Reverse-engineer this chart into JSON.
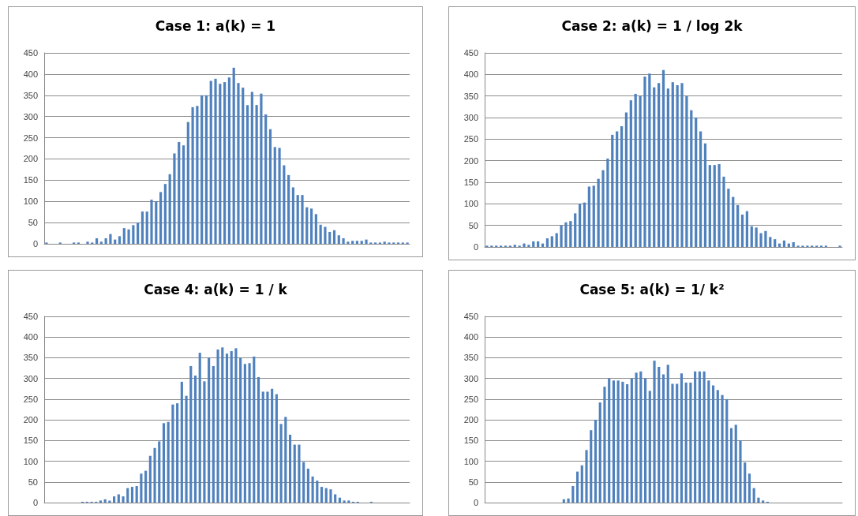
{
  "chart_data": [
    {
      "type": "bar",
      "title": "Case 1: a(k) = 1",
      "color": "#4f81bd",
      "ylim": [
        0,
        450
      ],
      "yticks": [
        0,
        50,
        100,
        150,
        200,
        250,
        300,
        350,
        400,
        450
      ],
      "grid": "y",
      "categories": [
        null,
        null,
        null,
        null,
        null,
        null,
        null,
        null,
        null,
        null,
        null,
        null,
        null,
        null,
        null,
        null,
        null,
        null,
        null,
        null,
        null,
        null,
        null,
        null,
        null,
        null,
        null,
        null,
        null,
        null,
        null,
        null,
        null,
        null,
        null,
        null,
        null,
        null,
        null,
        null,
        null,
        null,
        null,
        null,
        null,
        null,
        null,
        null,
        null,
        null,
        null,
        null,
        null,
        null,
        null,
        null,
        null,
        null,
        null,
        null,
        null,
        null,
        null,
        null,
        null,
        null,
        null,
        null,
        null,
        null,
        null,
        null,
        null,
        null,
        null,
        null,
        null,
        null,
        null,
        null
      ],
      "values": [
        3,
        0,
        0,
        3,
        0,
        0,
        3,
        3,
        0,
        5,
        3,
        13,
        5,
        13,
        23,
        10,
        18,
        37,
        34,
        44,
        50,
        76,
        76,
        104,
        100,
        122,
        141,
        164,
        213,
        240,
        232,
        287,
        322,
        325,
        350,
        350,
        384,
        389,
        377,
        381,
        392,
        415,
        379,
        368,
        327,
        358,
        327,
        354,
        305,
        270,
        228,
        226,
        185,
        162,
        133,
        115,
        115,
        86,
        83,
        70,
        45,
        40,
        28,
        32,
        20,
        13,
        5,
        7,
        7,
        7,
        10,
        3,
        3,
        3,
        5,
        3,
        3,
        3,
        3,
        3
      ]
    },
    {
      "type": "bar",
      "title": "Case 2: a(k) = 1 / log 2k",
      "color": "#4f81bd",
      "ylim": [
        0,
        450
      ],
      "yticks": [
        0,
        50,
        100,
        150,
        200,
        250,
        300,
        350,
        400,
        450
      ],
      "grid": "y",
      "categories": [
        null,
        null,
        null,
        null,
        null,
        null,
        null,
        null,
        null,
        null,
        null,
        null,
        null,
        null,
        null,
        null,
        null,
        null,
        null,
        null,
        null,
        null,
        null,
        null,
        null,
        null,
        null,
        null,
        null,
        null,
        null,
        null,
        null,
        null,
        null,
        null,
        null,
        null,
        null,
        null,
        null,
        null,
        null,
        null,
        null,
        null,
        null,
        null,
        null,
        null,
        null,
        null,
        null,
        null,
        null,
        null,
        null,
        null,
        null,
        null,
        null,
        null,
        null,
        null,
        null,
        null,
        null,
        null,
        null,
        null,
        null,
        null,
        null,
        null,
        null,
        null,
        null
      ],
      "values": [
        3,
        3,
        3,
        3,
        3,
        3,
        5,
        3,
        8,
        5,
        13,
        13,
        8,
        20,
        25,
        32,
        50,
        57,
        60,
        78,
        100,
        103,
        140,
        142,
        158,
        178,
        205,
        260,
        268,
        280,
        312,
        340,
        355,
        350,
        395,
        402,
        370,
        380,
        410,
        367,
        382,
        375,
        380,
        350,
        317,
        300,
        268,
        240,
        190,
        190,
        192,
        163,
        135,
        116,
        97,
        75,
        83,
        48,
        45,
        32,
        37,
        23,
        18,
        8,
        15,
        8,
        11,
        3,
        3,
        3,
        3,
        3,
        3,
        3,
        0,
        0,
        3
      ]
    },
    {
      "type": "bar",
      "title": "Case 4: a(k) = 1 / k",
      "color": "#4f81bd",
      "ylim": [
        0,
        450
      ],
      "yticks": [
        0,
        50,
        100,
        150,
        200,
        250,
        300,
        350,
        400,
        450
      ],
      "grid": "y",
      "categories": [
        null,
        null,
        null,
        null,
        null,
        null,
        null,
        null,
        null,
        null,
        null,
        null,
        null,
        null,
        null,
        null,
        null,
        null,
        null,
        null,
        null,
        null,
        null,
        null,
        null,
        null,
        null,
        null,
        null,
        null,
        null,
        null,
        null,
        null,
        null,
        null,
        null,
        null,
        null,
        null,
        null,
        null,
        null,
        null,
        null,
        null,
        null,
        null,
        null,
        null,
        null,
        null,
        null,
        null,
        null,
        null,
        null,
        null,
        null,
        null,
        null,
        null,
        null,
        null,
        null,
        null,
        null,
        null,
        null,
        null,
        null,
        null,
        null,
        null,
        null,
        null,
        null,
        null,
        null,
        null,
        null
      ],
      "values": [
        0,
        0,
        0,
        0,
        0,
        0,
        0,
        0,
        2,
        2,
        2,
        2,
        5,
        8,
        5,
        15,
        20,
        15,
        35,
        38,
        40,
        70,
        77,
        113,
        132,
        148,
        192,
        195,
        237,
        240,
        292,
        258,
        330,
        307,
        362,
        293,
        350,
        330,
        370,
        375,
        360,
        366,
        373,
        350,
        335,
        337,
        353,
        303,
        268,
        268,
        275,
        262,
        190,
        207,
        164,
        140,
        140,
        98,
        82,
        63,
        53,
        38,
        35,
        32,
        20,
        12,
        5,
        5,
        2,
        2,
        0,
        0,
        2,
        0,
        0,
        0,
        0,
        0,
        0,
        0,
        0
      ]
    },
    {
      "type": "bar",
      "title": "Case 5: a(k) = 1/ k²",
      "color": "#4f81bd",
      "ylim": [
        0,
        450
      ],
      "yticks": [
        0,
        50,
        100,
        150,
        200,
        250,
        300,
        350,
        400,
        450
      ],
      "grid": "y",
      "categories": [
        null,
        null,
        null,
        null,
        null,
        null,
        null,
        null,
        null,
        null,
        null,
        null,
        null,
        null,
        null,
        null,
        null,
        null,
        null,
        null,
        null,
        null,
        null,
        null,
        null,
        null,
        null,
        null,
        null,
        null,
        null,
        null,
        null,
        null,
        null,
        null,
        null,
        null,
        null,
        null,
        null,
        null,
        null,
        null,
        null,
        null,
        null,
        null,
        null,
        null,
        null,
        null,
        null,
        null,
        null,
        null,
        null,
        null,
        null,
        null,
        null,
        null,
        null,
        null,
        null,
        null,
        null,
        null,
        null,
        null,
        null,
        null,
        null,
        null,
        null,
        null,
        null,
        null,
        null
      ],
      "values": [
        0,
        0,
        0,
        0,
        0,
        0,
        0,
        0,
        0,
        0,
        0,
        0,
        0,
        0,
        0,
        0,
        0,
        8,
        10,
        40,
        75,
        90,
        127,
        175,
        200,
        242,
        280,
        300,
        295,
        295,
        292,
        286,
        300,
        314,
        317,
        300,
        270,
        343,
        328,
        310,
        333,
        287,
        287,
        312,
        290,
        290,
        317,
        317,
        317,
        295,
        283,
        272,
        260,
        250,
        180,
        188,
        150,
        97,
        70,
        35,
        12,
        5,
        2,
        0,
        0,
        0,
        0,
        0,
        0,
        0,
        0,
        0,
        0,
        0,
        0,
        0,
        0,
        0,
        0
      ]
    }
  ]
}
